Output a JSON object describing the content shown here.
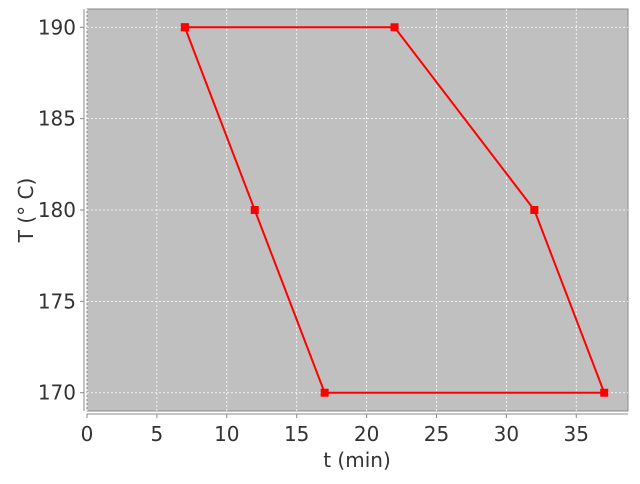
{
  "chart_data": {
    "type": "line",
    "title": "",
    "xlabel": "t (min)",
    "ylabel": "T (° C)",
    "xlim": [
      0,
      38.7
    ],
    "ylim": [
      169,
      191
    ],
    "xticks": [
      0,
      5,
      10,
      15,
      20,
      25,
      30,
      35
    ],
    "yticks": [
      170,
      175,
      180,
      185,
      190
    ],
    "grid": true,
    "series": [
      {
        "x": [
          7,
          22,
          32,
          37,
          17,
          12,
          7
        ],
        "y": [
          190,
          190,
          180,
          170,
          170,
          180,
          190
        ],
        "marker": "square"
      }
    ],
    "colors": {
      "line": "#ff0000",
      "plot_bg": "#c0c0c0",
      "grid": "#ffffff"
    }
  }
}
